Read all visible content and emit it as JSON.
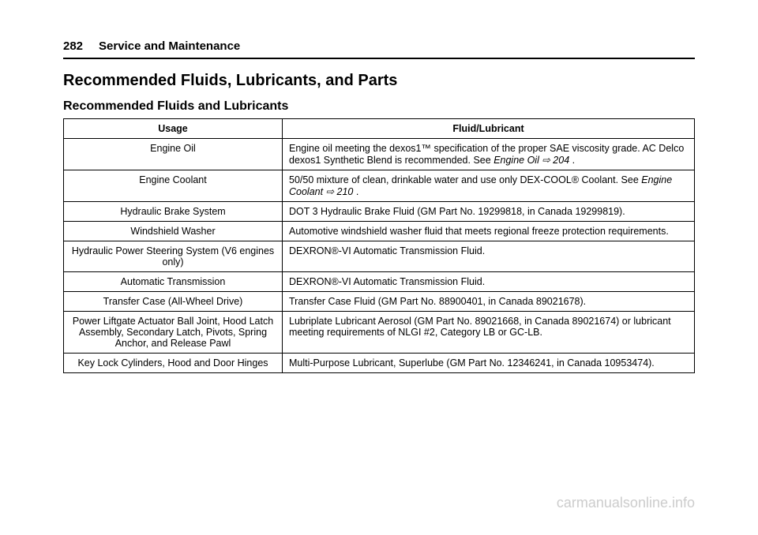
{
  "header": {
    "page_number": "282",
    "section": "Service and Maintenance"
  },
  "title": "Recommended Fluids, Lubricants, and Parts",
  "subtitle": "Recommended Fluids and Lubricants",
  "table": {
    "columns": [
      "Usage",
      "Fluid/Lubricant"
    ],
    "rows": [
      {
        "usage": "Engine Oil",
        "fluid_pre": "Engine oil meeting the dexos1™ specification of the proper SAE viscosity grade. AC Delco dexos1 Synthetic Blend is recommended. See ",
        "fluid_ref": "Engine Oil",
        "fluid_cross": " ⇨ 204",
        "fluid_post": " ."
      },
      {
        "usage": "Engine Coolant",
        "fluid_pre": "50/50 mixture of clean, drinkable water and use only DEX-COOL® Coolant. See ",
        "fluid_ref": "Engine Coolant",
        "fluid_cross": " ⇨ 210",
        "fluid_post": " ."
      },
      {
        "usage": "Hydraulic Brake System",
        "fluid_pre": "DOT 3 Hydraulic Brake Fluid (GM Part No. 19299818, in Canada 19299819).",
        "fluid_ref": "",
        "fluid_cross": "",
        "fluid_post": ""
      },
      {
        "usage": "Windshield Washer",
        "fluid_pre": "Automotive windshield washer fluid that meets regional freeze protection requirements.",
        "fluid_ref": "",
        "fluid_cross": "",
        "fluid_post": ""
      },
      {
        "usage": "Hydraulic Power Steering System (V6 engines only)",
        "fluid_pre": "DEXRON®-VI Automatic Transmission Fluid.",
        "fluid_ref": "",
        "fluid_cross": "",
        "fluid_post": ""
      },
      {
        "usage": "Automatic Transmission",
        "fluid_pre": "DEXRON®-VI Automatic Transmission Fluid.",
        "fluid_ref": "",
        "fluid_cross": "",
        "fluid_post": ""
      },
      {
        "usage": "Transfer Case (All-Wheel Drive)",
        "fluid_pre": "Transfer Case Fluid (GM Part No. 88900401, in Canada 89021678).",
        "fluid_ref": "",
        "fluid_cross": "",
        "fluid_post": ""
      },
      {
        "usage": "Power Liftgate Actuator Ball Joint, Hood Latch Assembly, Secondary Latch, Pivots, Spring Anchor, and Release Pawl",
        "fluid_pre": "Lubriplate Lubricant Aerosol (GM Part No. 89021668, in Canada 89021674) or lubricant meeting requirements of NLGI #2, Category LB or GC-LB.",
        "fluid_ref": "",
        "fluid_cross": "",
        "fluid_post": ""
      },
      {
        "usage": "Key Lock Cylinders, Hood and Door Hinges",
        "fluid_pre": "Multi-Purpose Lubricant, Superlube (GM Part No. 12346241, in Canada 10953474).",
        "fluid_ref": "",
        "fluid_cross": "",
        "fluid_post": ""
      }
    ]
  },
  "watermark": "carmanualsonline.info"
}
